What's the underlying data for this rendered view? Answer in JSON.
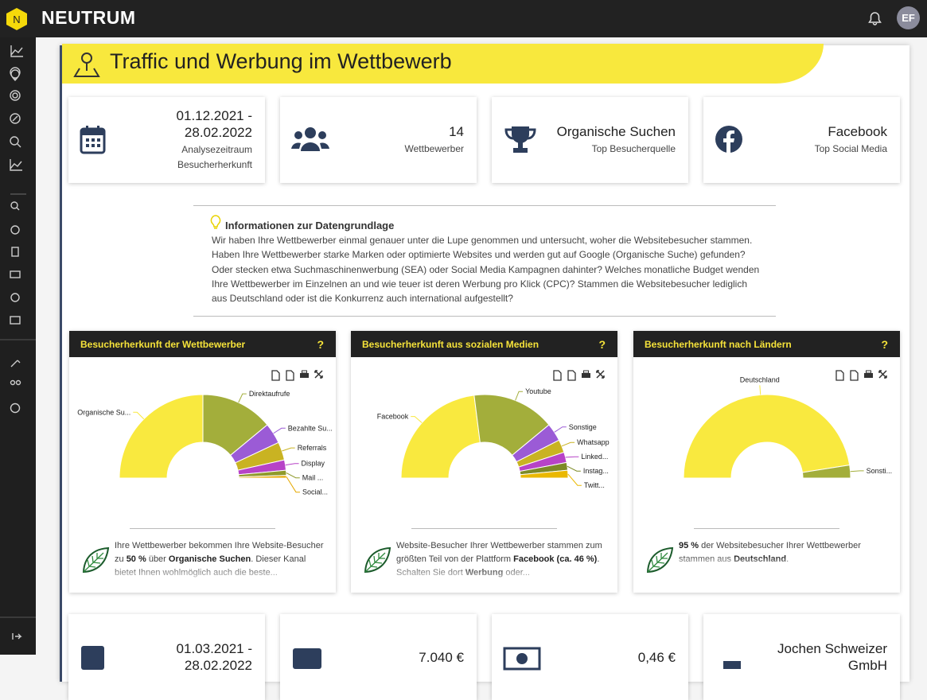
{
  "header": {
    "logo": "NEUTRUM",
    "avatar": "EF"
  },
  "page": {
    "title": "Traffic und Werbung im Wettbewerb"
  },
  "kpis": [
    {
      "value": "01.12.2021 - 28.02.2022",
      "label": "Analysezeitraum Besucherherkunft"
    },
    {
      "value": "14",
      "label": "Wettbewerber"
    },
    {
      "value": "Organische Suchen",
      "label": "Top Besucherquelle"
    },
    {
      "value": "Facebook",
      "label": "Top Social Media"
    }
  ],
  "info": {
    "title": "Informationen zur Datengrundlage",
    "text": "Wir haben Ihre Wettbewerber einmal genauer unter die Lupe genommen und untersucht, woher die Websitebesucher stammen. Haben Ihre Wettbewerber starke Marken oder optimierte Websites und werden gut auf Google (Organische Suche) gefunden? Oder stecken etwa Suchmaschinenwerbung (SEA) oder Social Media Kampagnen dahinter? Welches monatliche Budget wenden Ihre Wettbewerber im Einzelnen an und wie teuer ist deren Werbung pro Klick (CPC)? Stammen die Websitebesucher lediglich aus Deutschland oder ist die Konkurrenz auch international aufgestellt?"
  },
  "chart_data": [
    {
      "type": "donut",
      "half": true,
      "title": "Besucherherkunft der Wettbewerber",
      "categories": [
        "Organische Su...",
        "Direktaufrufe",
        "Bezahlte Su...",
        "Referrals",
        "Display",
        "Mail ...",
        "Social..."
      ],
      "values": [
        50,
        28,
        8,
        7,
        4,
        2,
        1
      ],
      "colors": [
        "#f9e93f",
        "#a3ae3b",
        "#9b5bd6",
        "#c9b322",
        "#b743c7",
        "#8f9a2b",
        "#e6a800"
      ]
    },
    {
      "type": "donut",
      "half": true,
      "title": "Besucherherkunft aus sozialen Medien",
      "categories": [
        "Facebook",
        "Youtube",
        "Sonstige",
        "Whatsapp",
        "Linked...",
        "Instag...",
        "Twitt..."
      ],
      "values": [
        46,
        32,
        7,
        5,
        4,
        3,
        3
      ],
      "colors": [
        "#f9e93f",
        "#a3ae3b",
        "#9b5bd6",
        "#c9b322",
        "#b743c7",
        "#7d8a26",
        "#eab800"
      ]
    },
    {
      "type": "donut",
      "half": true,
      "title": "Besucherherkunft nach Ländern",
      "categories": [
        "Deutschland",
        "Sonsti..."
      ],
      "values": [
        95,
        5
      ],
      "colors": [
        "#f9e93f",
        "#a3ae3b"
      ]
    }
  ],
  "panels": [
    {
      "help": "?",
      "description": [
        {
          "text": "Ihre Wettbewerber bekommen Ihre Website-Besucher zu ",
          "bold": false
        },
        {
          "text": "50 %",
          "bold": true
        },
        {
          "text": " über ",
          "bold": false
        },
        {
          "text": "Organische Suchen",
          "bold": true
        },
        {
          "text": ". Dieser Kanal bietet Ihnen wohlmöglich auch die beste...",
          "bold": false
        }
      ]
    },
    {
      "help": "?",
      "description": [
        {
          "text": "Website-Besucher Ihrer Wettbewerber stammen zum größten Teil von der Plattform ",
          "bold": false
        },
        {
          "text": "Facebook (ca. 46 %)",
          "bold": true
        },
        {
          "text": ". Schalten Sie dort ",
          "bold": false
        },
        {
          "text": "Werbung",
          "bold": true
        },
        {
          "text": " oder...",
          "bold": false
        }
      ]
    },
    {
      "help": "?",
      "description": [
        {
          "text": "95 %",
          "bold": true
        },
        {
          "text": " der Websitebesucher Ihrer Wettbewerber stammen aus ",
          "bold": false
        },
        {
          "text": "Deutschland",
          "bold": true
        },
        {
          "text": ".",
          "bold": false
        }
      ]
    }
  ],
  "kpis_2": [
    {
      "value": "01.03.2021 - 28.02.2022"
    },
    {
      "value": "7.040 €"
    },
    {
      "value": "0,46 €"
    },
    {
      "value": "Jochen Schweizer GmbH"
    }
  ]
}
